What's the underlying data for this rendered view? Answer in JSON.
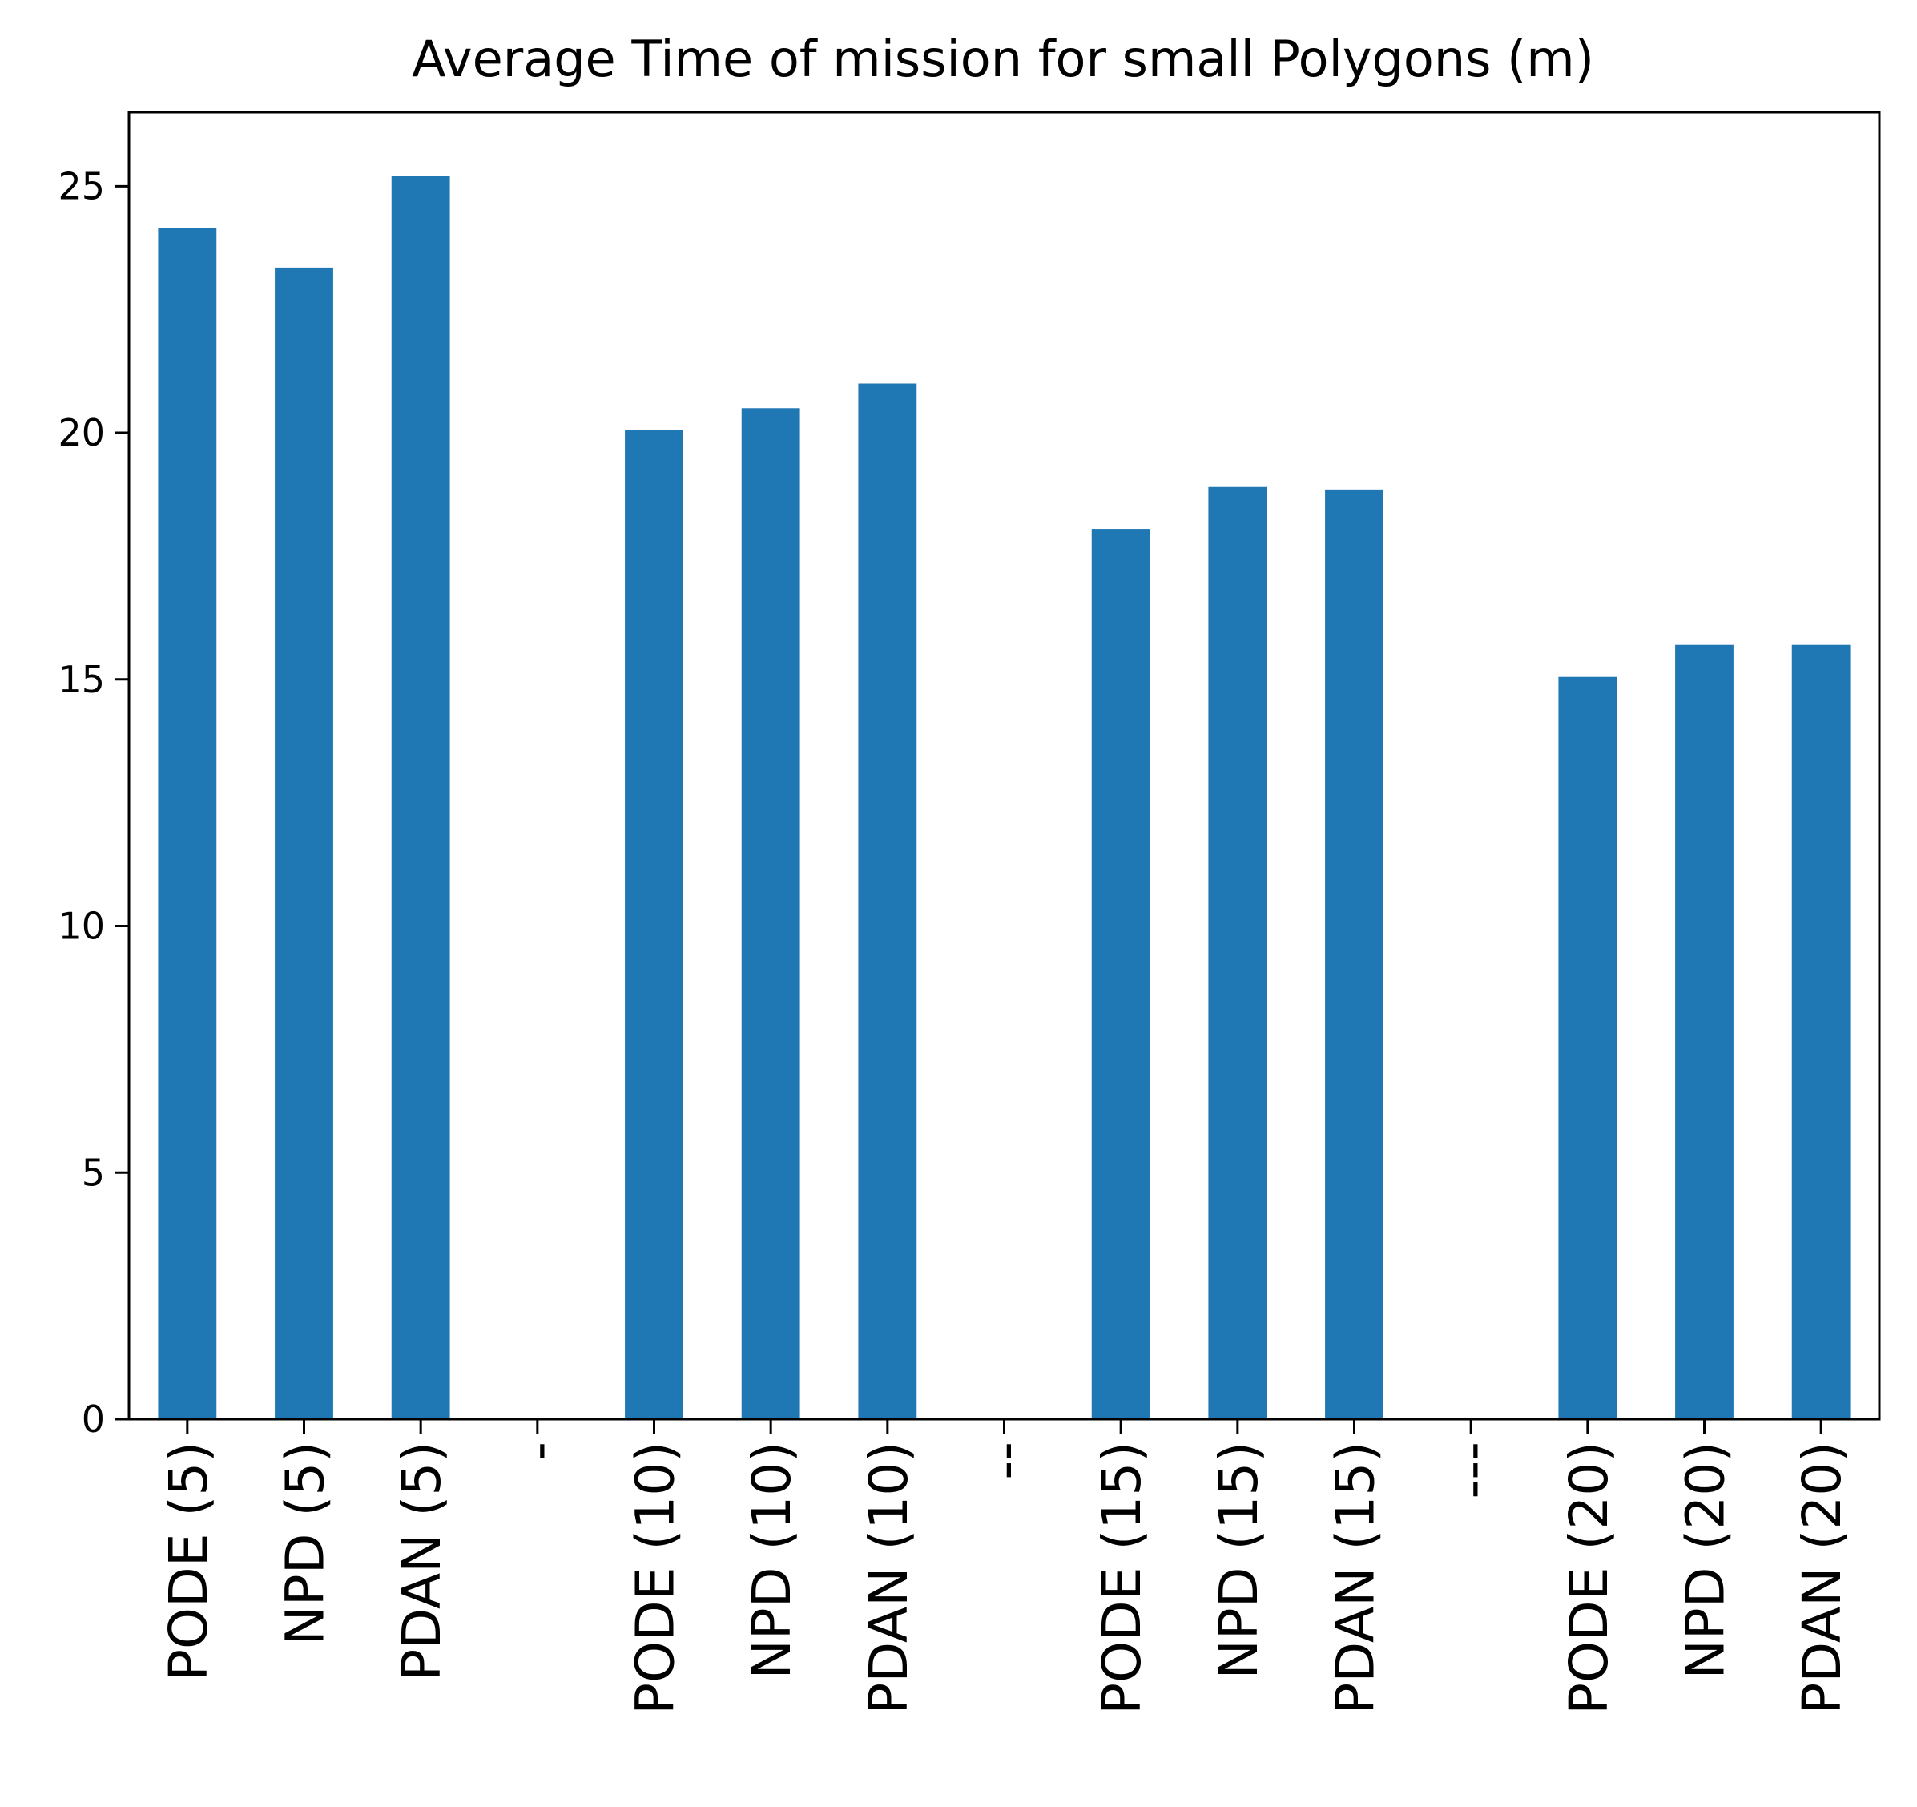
{
  "chart_data": {
    "type": "bar",
    "title": "Average Time of mission for small Polygons (m)",
    "xlabel": "",
    "ylabel": "",
    "ylim": [
      0,
      26.5
    ],
    "yticks": [
      0,
      5,
      10,
      15,
      20,
      25
    ],
    "grid": false,
    "categories": [
      "PODE (5)",
      "NPD (5)",
      "PDAN (5)",
      "-",
      "PODE (10)",
      "NPD (10)",
      "PDAN (10)",
      "--",
      "PODE (15)",
      "NPD (15)",
      "PDAN (15)",
      "---",
      "PODE (20)",
      "NPD (20)",
      "PDAN (20)"
    ],
    "values": [
      24.15,
      23.35,
      25.2,
      0,
      20.05,
      20.5,
      21.0,
      0,
      18.05,
      18.9,
      18.85,
      0,
      15.05,
      15.7,
      15.7
    ],
    "colors": {
      "bar": "#1f77b4",
      "axis": "#000000",
      "background": "#ffffff"
    }
  }
}
